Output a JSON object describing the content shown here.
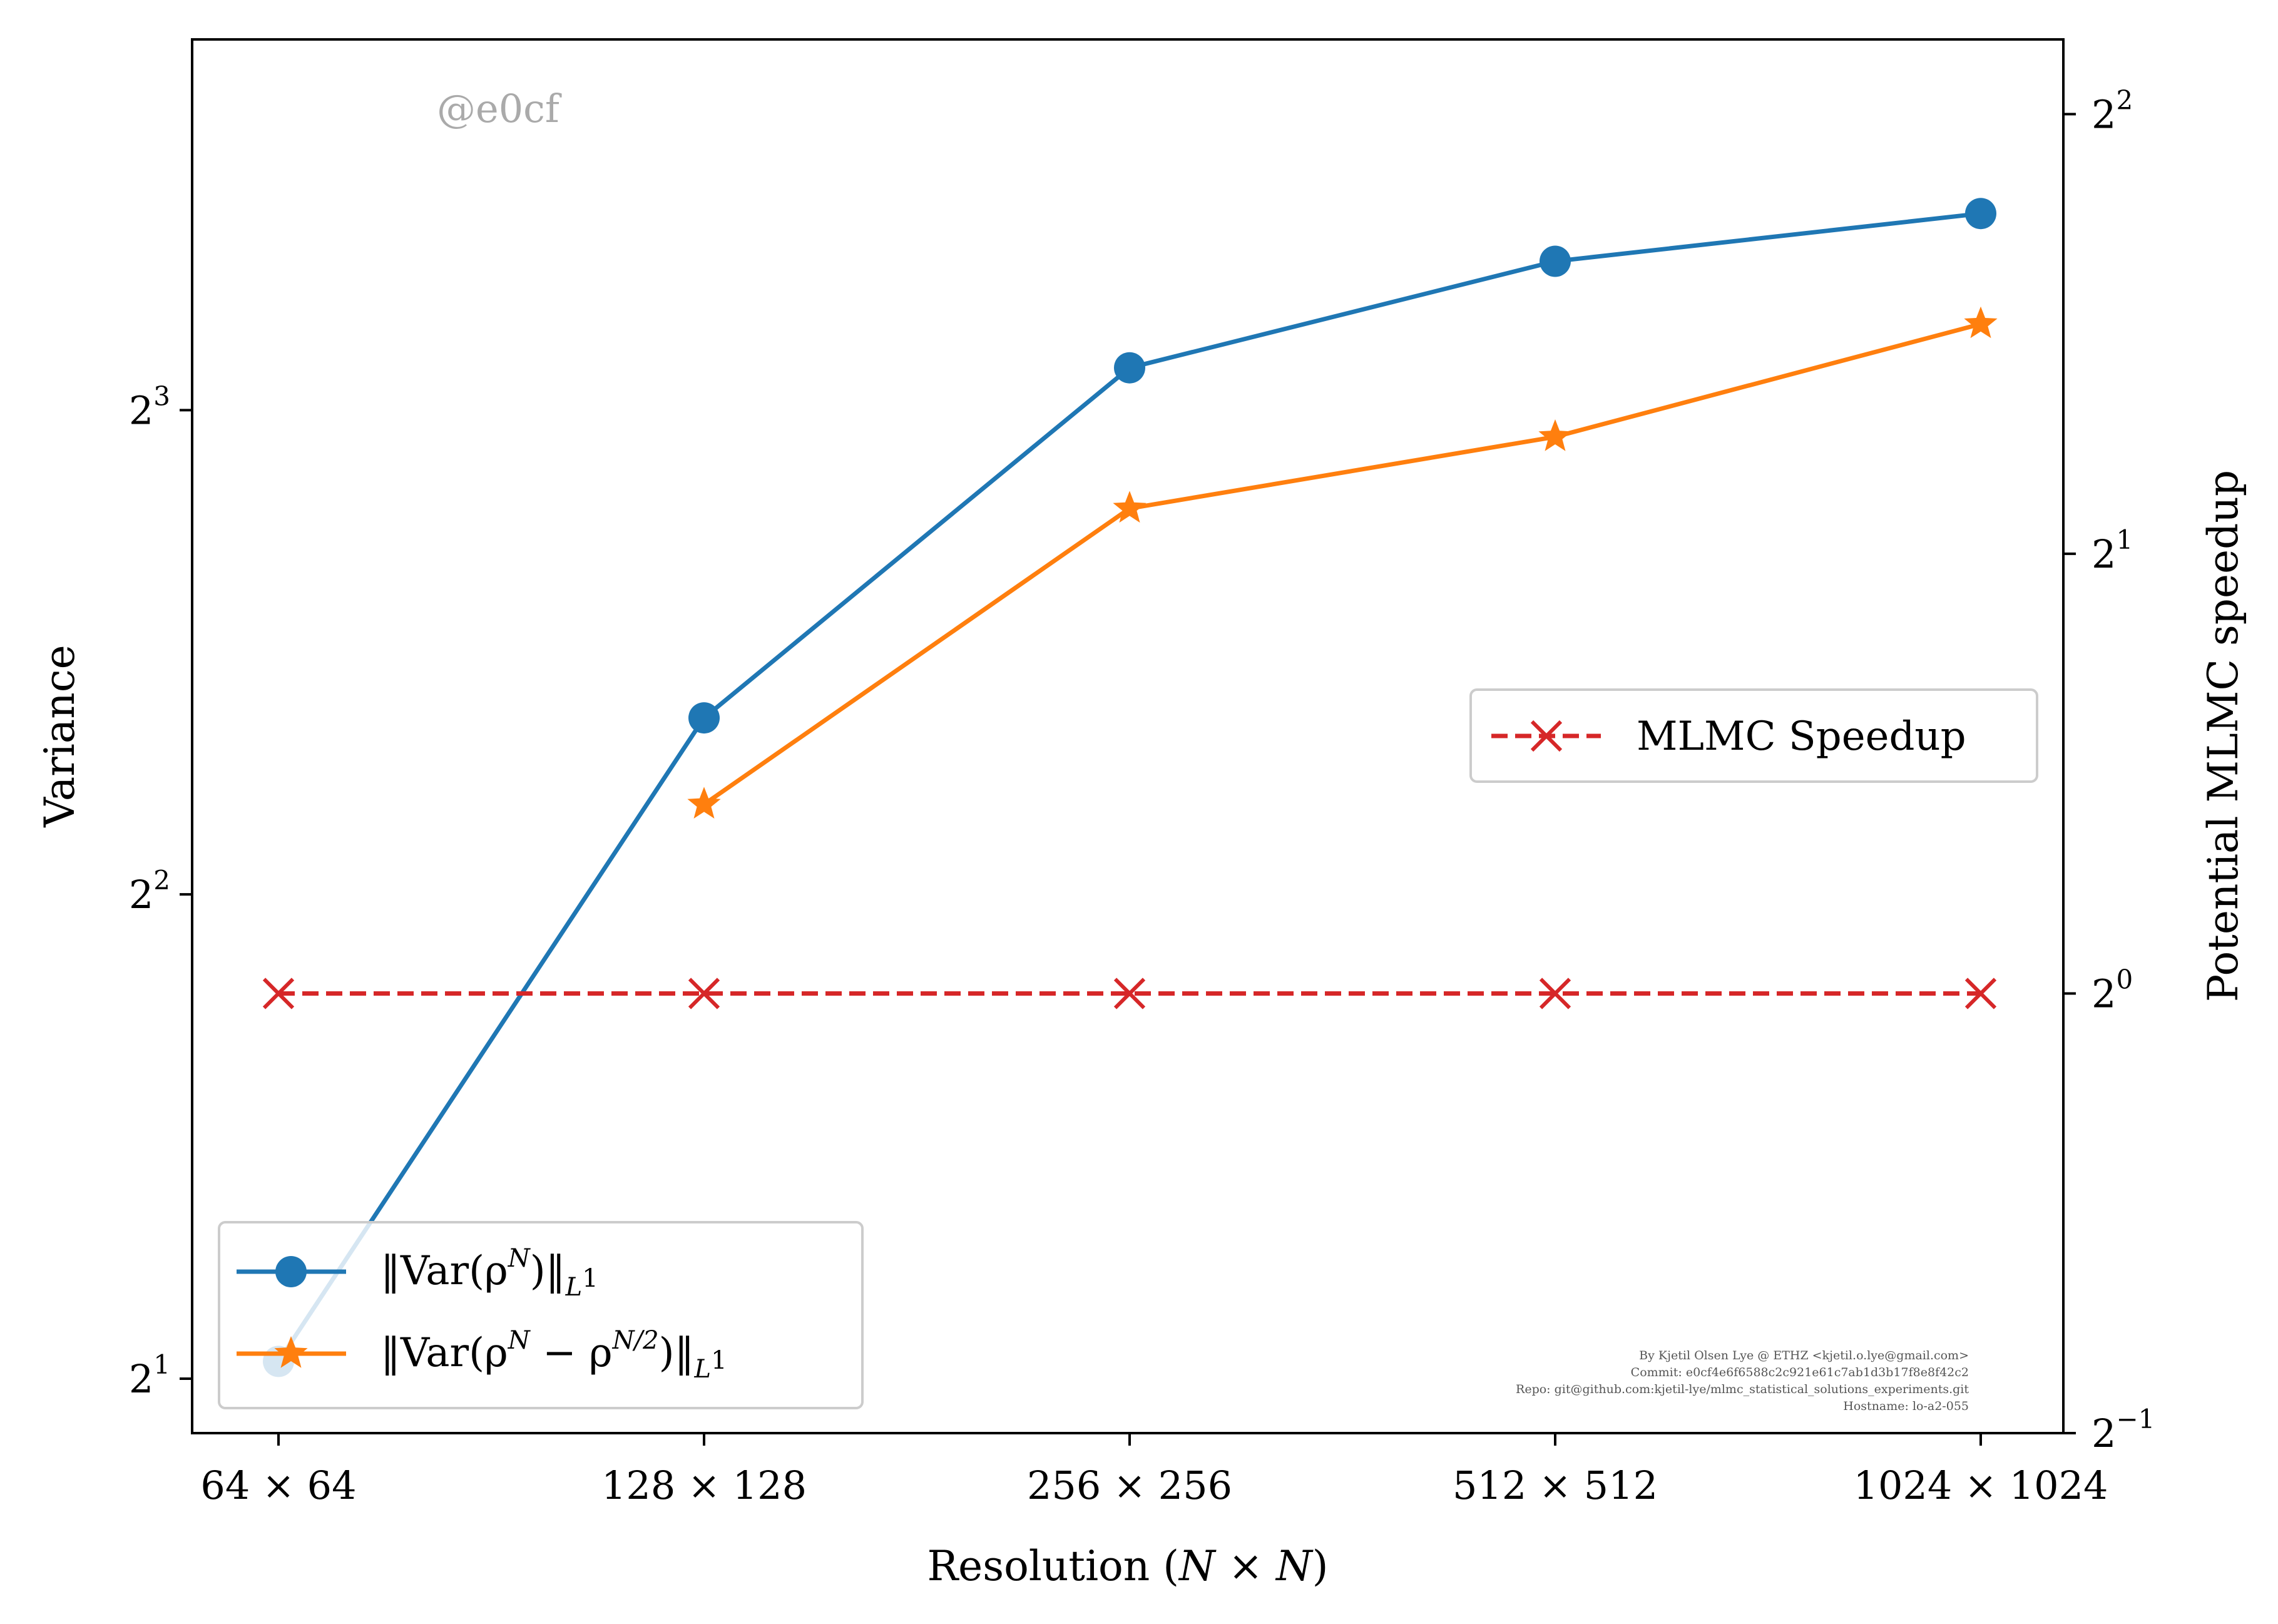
{
  "chart_data": {
    "type": "line",
    "title": "",
    "watermark": "@e0cf",
    "xlabel": "Resolution (N × N)",
    "ylabel_left": "Variance",
    "ylabel_right": "Potential MLMC speedup",
    "x_categories": [
      "64 × 64",
      "128 × 128",
      "256 × 256",
      "512 × 512",
      "1024 × 1024"
    ],
    "left_axis": {
      "scale": "log2",
      "ylim": [
        1.85,
        13.6
      ],
      "ticks": [
        {
          "value": 2,
          "base": "2",
          "exp": "1"
        },
        {
          "value": 4,
          "base": "2",
          "exp": "2"
        },
        {
          "value": 8,
          "base": "2",
          "exp": "3"
        }
      ]
    },
    "right_axis": {
      "scale": "log2",
      "ylim": [
        0.5,
        4.5
      ],
      "ticks": [
        {
          "value": 0.5,
          "base": "2",
          "exp": "−1"
        },
        {
          "value": 1,
          "base": "2",
          "exp": "0"
        },
        {
          "value": 2,
          "base": "2",
          "exp": "1"
        },
        {
          "value": 4,
          "base": "2",
          "exp": "2"
        }
      ]
    },
    "series": [
      {
        "name": "‖Var(ρ^N)‖_{L^1}",
        "legend_main": "‖Var(ρ",
        "legend_sup": "N",
        "legend_close": ")‖",
        "legend_sub": "L",
        "legend_subsup": "1",
        "axis": "left",
        "marker": "circle",
        "linestyle": "solid",
        "color": "#1f77b4",
        "x_index": [
          0,
          1,
          2,
          3,
          4
        ],
        "values": [
          2.05,
          5.15,
          8.5,
          9.9,
          10.6
        ]
      },
      {
        "name": "‖Var(ρ^N − ρ^{N/2})‖_{L^1}",
        "legend_main": "‖Var(ρ",
        "legend_sup": "N",
        "legend_mid": " − ρ",
        "legend_sup2": "N/2",
        "legend_close": ")‖",
        "legend_sub": "L",
        "legend_subsup": "1",
        "axis": "left",
        "marker": "star",
        "linestyle": "solid",
        "color": "#ff7f0e",
        "x_index": [
          1,
          2,
          3,
          4
        ],
        "values": [
          4.55,
          6.95,
          7.7,
          9.05
        ]
      },
      {
        "name": "MLMC Speedup",
        "axis": "right",
        "marker": "x",
        "linestyle": "dashed",
        "color": "#d62728",
        "x_index": [
          0,
          1,
          2,
          3,
          4
        ],
        "values": [
          1,
          1,
          1,
          1,
          1
        ]
      }
    ],
    "legend_left_position": "lower-left",
    "legend_right_position": "center-right",
    "grid": false,
    "credits": [
      "By Kjetil Olsen Lye @ ETHZ <kjetil.o.lye@gmail.com>",
      "Commit: e0cf4e6f6588c2c921e61c7ab1d3b17f8e8f42c2",
      "Repo: git@github.com:kjetil-lye/mlmc_statistical_solutions_experiments.git",
      "Hostname: lo-a2-055"
    ]
  }
}
